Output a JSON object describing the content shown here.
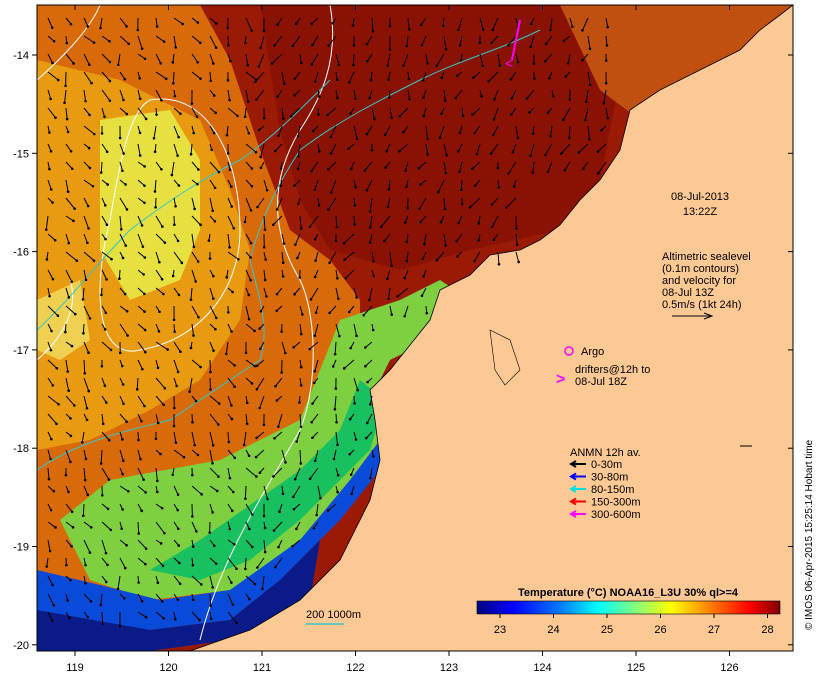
{
  "map": {
    "date": "08-Jul-2013",
    "time": "13:22Z",
    "altimetry_lines": [
      "Altimetric sealevel",
      "(0.1m contours)",
      "and velocity for",
      "08-Jul 13Z",
      "0.5m/s (1kt 24h)"
    ],
    "argo_label": "Argo",
    "drifters_lines": [
      "drifters@12h to",
      "08-Jul 18Z"
    ],
    "anmn_title": "ANMN 12h av.",
    "anmn_legend": [
      {
        "label": "0-30m",
        "color": "#000000"
      },
      {
        "label": "30-80m",
        "color": "#0000ff"
      },
      {
        "label": "80-150m",
        "color": "#00e0e0"
      },
      {
        "label": "150-300m",
        "color": "#ff0000"
      },
      {
        "label": "300-600m",
        "color": "#ff00ff"
      }
    ],
    "isobath_label": "200  1000m",
    "colorbar_title": "Temperature (°C) NOAA16_L3U 30% ql>=4",
    "colorbar_ticks": [
      "23",
      "24",
      "25",
      "26",
      "27",
      "28"
    ],
    "colorbar_colors": [
      "#00007f",
      "#0000ff",
      "#007fff",
      "#00ffff",
      "#7fff7f",
      "#ffff00",
      "#ff7f00",
      "#ff0000",
      "#7f0000"
    ],
    "credit": "© IMOS 06-Apr-2015 15:25:14 Hobart time",
    "lon_ticks": [
      "119",
      "120",
      "121",
      "122",
      "123",
      "124",
      "125",
      "126"
    ],
    "lat_ticks": [
      "-14",
      "-15",
      "-16",
      "-17",
      "-18",
      "-19",
      "-20"
    ],
    "land_color": "#fcc995",
    "argo_color": "#ff00ff"
  }
}
